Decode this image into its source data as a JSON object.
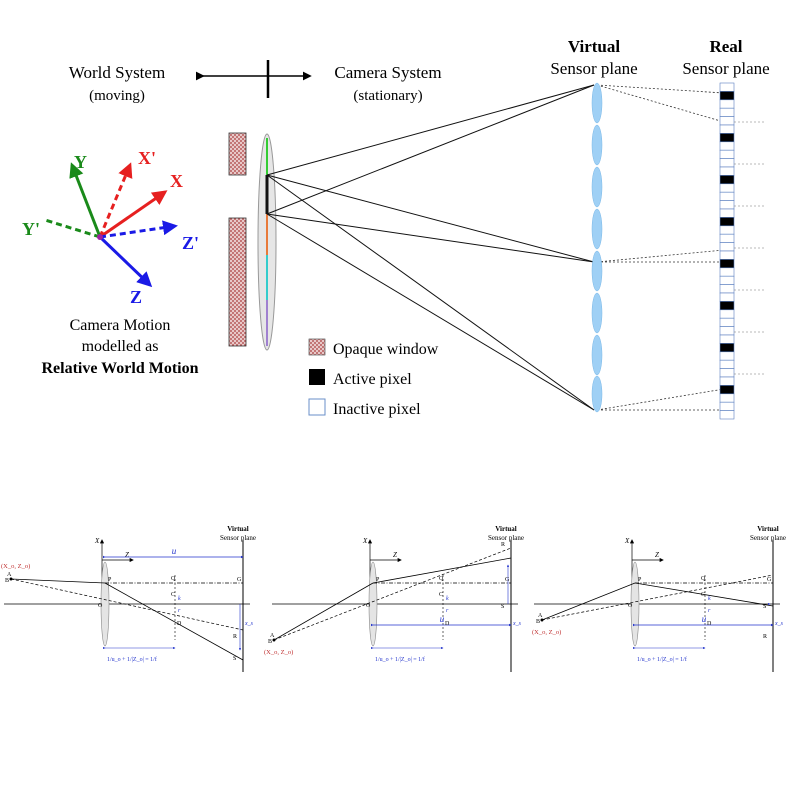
{
  "top": {
    "world_system": "World System",
    "world_sub": "(moving)",
    "camera_system": "Camera System",
    "camera_sub": "(stationary)",
    "virtual_title": "Virtual",
    "virtual_sub": "Sensor plane",
    "real_title": "Real",
    "real_sub": "Sensor plane",
    "axes": {
      "x": "X",
      "y": "Y",
      "z": "Z",
      "xp": "X'",
      "yp": "Y'",
      "zp": "Z'"
    },
    "motion_line1": "Camera Motion",
    "motion_line2": "modelled as",
    "motion_line3": "Relative World Motion",
    "legend": {
      "opaque": "Opaque window",
      "active": "Active pixel",
      "inactive": "Inactive pixel"
    },
    "colors": {
      "x_axis": "#e62020",
      "y_axis": "#1a8a1a",
      "z_axis": "#1a1ae6",
      "lens": "#9fd0f5",
      "opaque": "#b84a4a",
      "active": "#000000"
    }
  },
  "bottom": {
    "panels": [
      {
        "virtual": "Virtual",
        "sensor": "Sensor plane",
        "u": "u",
        "X": "X",
        "Z": "Z",
        "coord": "(X_o, Z_o)",
        "lens_eq": "1/u_o + 1/|Z_o| = 1/f",
        "labels": [
          "A",
          "B",
          "O",
          "P",
          "Q",
          "C",
          "D",
          "G",
          "R",
          "S",
          "k",
          "r",
          "x_s"
        ]
      },
      {
        "virtual": "Virtual",
        "sensor": "Sensor plane",
        "u": "u",
        "X": "X",
        "Z": "Z",
        "coord": "(X_o, Z_o)",
        "lens_eq": "1/u_o + 1/|Z_o| = 1/f",
        "labels": [
          "A",
          "B",
          "O",
          "P",
          "Q",
          "C",
          "D",
          "G",
          "R",
          "S",
          "k",
          "r",
          "x_s"
        ]
      },
      {
        "virtual": "Virtual",
        "sensor": "Sensor plane",
        "u": "u",
        "X": "X",
        "Z": "Z",
        "coord": "(X_o, Z_o)",
        "lens_eq": "1/u_o + 1/|Z_o| = 1/f",
        "labels": [
          "A",
          "B",
          "O",
          "P",
          "Q",
          "C",
          "D",
          "G",
          "R",
          "S",
          "k",
          "r",
          "x_s"
        ]
      }
    ]
  }
}
